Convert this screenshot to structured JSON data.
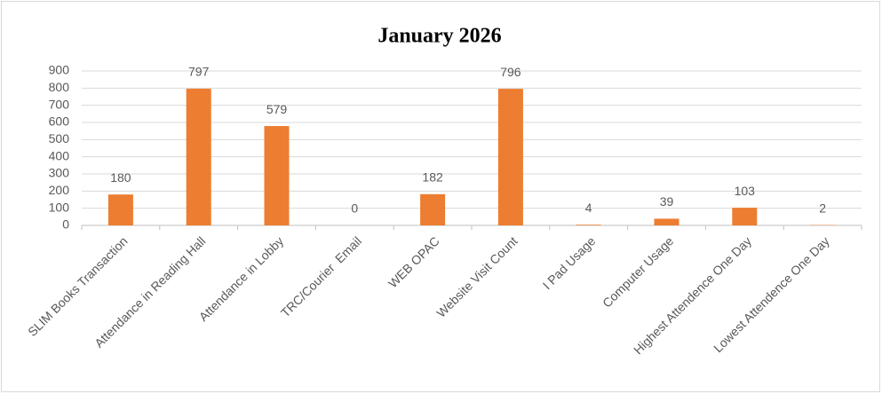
{
  "chart_data": {
    "type": "bar",
    "title": "January 2026",
    "categories": [
      "SLIM Books Transaction",
      "Attendance in Reading Hall",
      "Attendance in Lobby",
      "TRC/Courier  Email",
      "WEB OPAC",
      "Website Visit Count",
      "I Pad Usage",
      "Computer Usage",
      "Highest Attendence One Day",
      "Lowest Attendence One Day"
    ],
    "values": [
      180,
      797,
      579,
      0,
      182,
      796,
      4,
      39,
      103,
      2
    ],
    "color": "#ed7d31",
    "ylim": [
      0,
      900
    ],
    "yticks": [
      0,
      100,
      200,
      300,
      400,
      500,
      600,
      700,
      800,
      900
    ],
    "grid": true,
    "data_labels": true
  }
}
